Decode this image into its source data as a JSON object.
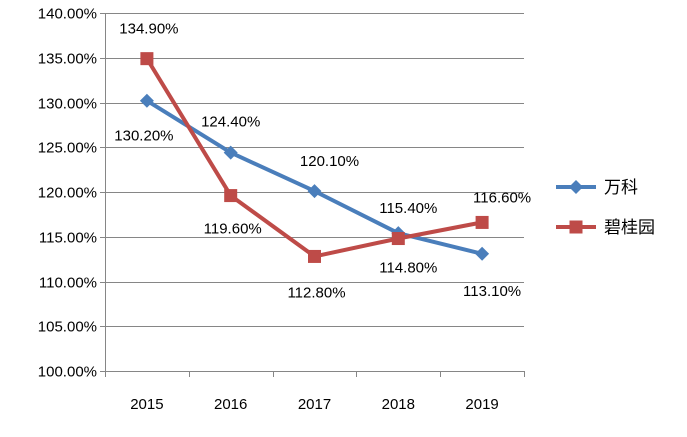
{
  "chart_data": {
    "type": "line",
    "categories": [
      "2015",
      "2016",
      "2017",
      "2018",
      "2019"
    ],
    "ylim": [
      100,
      140
    ],
    "yticks": [
      "100.00%",
      "105.00%",
      "110.00%",
      "115.00%",
      "120.00%",
      "125.00%",
      "130.00%",
      "135.00%",
      "140.00%"
    ],
    "grid": "horizontal",
    "legend_position": "right",
    "series": [
      {
        "name": "万科",
        "values": [
          130.2,
          124.4,
          120.1,
          115.4,
          113.1
        ],
        "labels": [
          "130.20%",
          "124.40%",
          "120.10%",
          "115.40%",
          "113.10%"
        ],
        "color": "#4a7ebb",
        "marker": "diamond"
      },
      {
        "name": "碧桂园",
        "values": [
          134.9,
          119.6,
          112.8,
          114.8,
          116.6
        ],
        "labels": [
          "134.90%",
          "119.60%",
          "112.80%",
          "114.80%",
          "116.60%"
        ],
        "color": "#be4b48",
        "marker": "square"
      }
    ]
  }
}
